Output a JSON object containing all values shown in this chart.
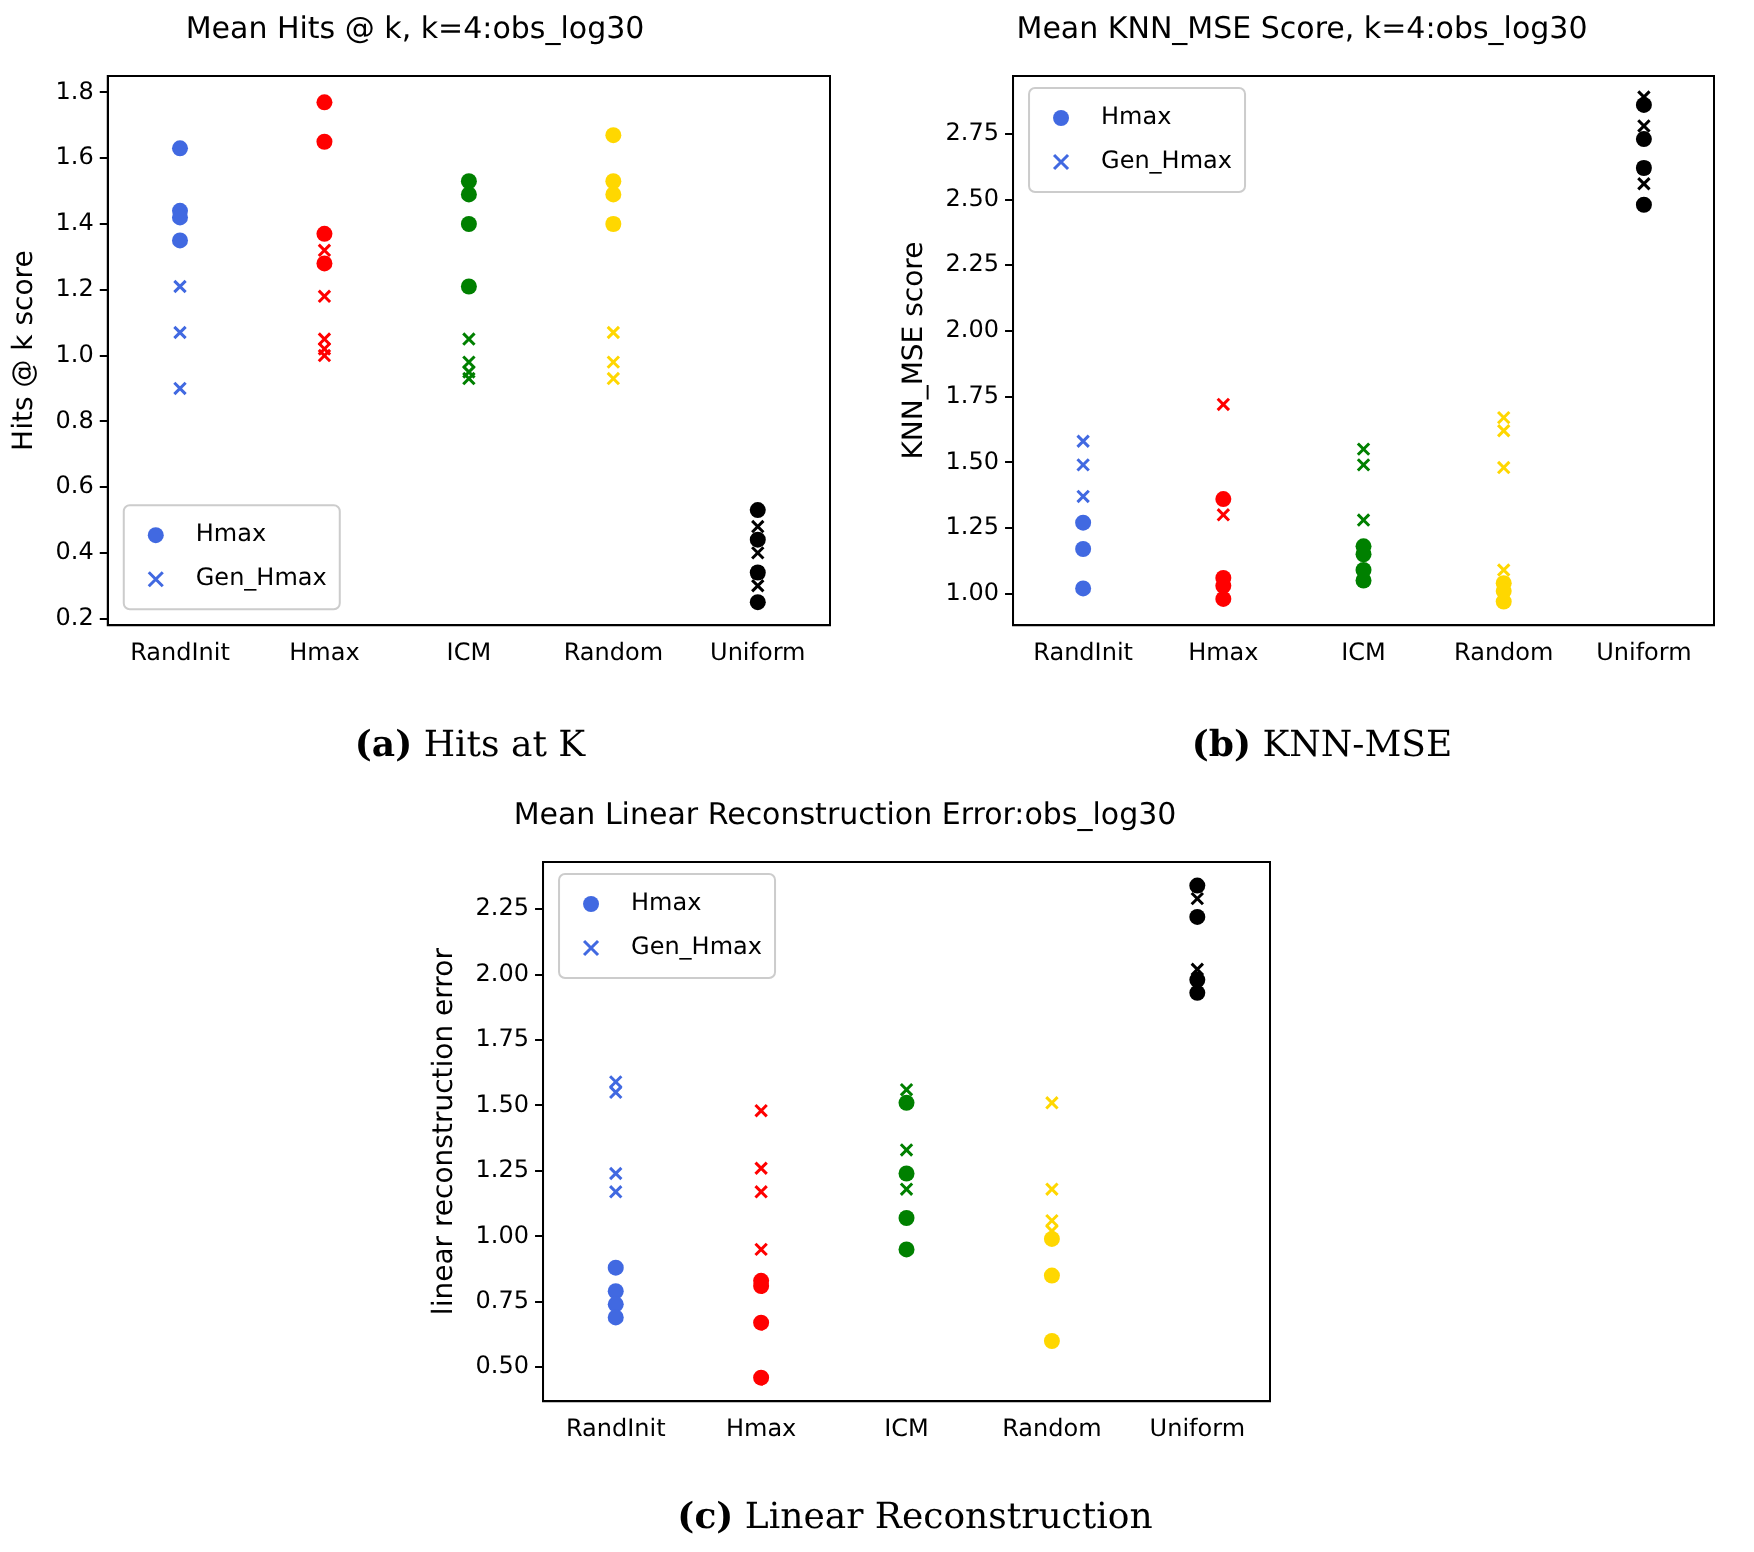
{
  "chart_data": [
    {
      "type": "scatter",
      "title": "Mean Hits @ k, k=4:obs_log30",
      "ylabel": "Hits @ k score",
      "categories": [
        "RandInit",
        "Hmax",
        "ICM",
        "Random",
        "Uniform"
      ],
      "ylim": [
        0.18,
        1.85
      ],
      "yticks": [
        0.2,
        0.4,
        0.6,
        0.8,
        {
          "value": 1,
          "label": "1.0"
        },
        1.2,
        1.4,
        1.6,
        1.8
      ],
      "legend": "bottom left",
      "annotations": [
        "(a) Hits at K"
      ],
      "series": [
        {
          "name": "Hmax",
          "marker": "circle",
          "x": [
            "RandInit",
            "RandInit",
            "RandInit",
            "RandInit",
            "Hmax",
            "Hmax",
            "Hmax",
            "Hmax",
            "ICM",
            "ICM",
            "ICM",
            "ICM",
            "Random",
            "Random",
            "Random",
            "Random",
            "Uniform",
            "Uniform",
            "Uniform",
            "Uniform"
          ],
          "values": [
            1.63,
            1.44,
            1.42,
            1.35,
            1.77,
            1.65,
            1.37,
            1.28,
            1.53,
            1.49,
            1.4,
            1.21,
            1.67,
            1.53,
            1.49,
            1.4,
            0.53,
            0.44,
            0.34,
            0.25
          ],
          "colors": [
            "#4169e1",
            "#4169e1",
            "#4169e1",
            "#4169e1",
            "#ff0000",
            "#ff0000",
            "#ff0000",
            "#ff0000",
            "#008000",
            "#008000",
            "#008000",
            "#008000",
            "#ffd700",
            "#ffd700",
            "#ffd700",
            "#ffd700",
            "#000000",
            "#000000",
            "#000000",
            "#000000"
          ]
        },
        {
          "name": "Gen_Hmax",
          "marker": "cross",
          "x": [
            "RandInit",
            "RandInit",
            "RandInit",
            "Hmax",
            "Hmax",
            "Hmax",
            "Hmax",
            "Hmax",
            "ICM",
            "ICM",
            "ICM",
            "ICM",
            "Random",
            "Random",
            "Random",
            "Random",
            "Uniform",
            "Uniform",
            "Uniform",
            "Uniform"
          ],
          "values": [
            1.21,
            1.07,
            0.9,
            1.32,
            1.18,
            1.05,
            1.02,
            1.0,
            1.05,
            0.98,
            0.95,
            0.93,
            1.4,
            1.07,
            0.98,
            0.93,
            0.48,
            0.4,
            0.34,
            0.3
          ],
          "colors": [
            "#4169e1",
            "#4169e1",
            "#4169e1",
            "#ff0000",
            "#ff0000",
            "#ff0000",
            "#ff0000",
            "#ff0000",
            "#008000",
            "#008000",
            "#008000",
            "#008000",
            "#ffd700",
            "#ffd700",
            "#ffd700",
            "#ffd700",
            "#000000",
            "#000000",
            "#000000",
            "#000000"
          ]
        }
      ]
    },
    {
      "type": "scatter",
      "title": "Mean KNN_MSE Score, k=4:obs_log30",
      "ylabel": "KNN_MSE score",
      "categories": [
        "RandInit",
        "Hmax",
        "ICM",
        "Random",
        "Uniform"
      ],
      "ylim": [
        0.88,
        2.97
      ],
      "yticks": [
        {
          "value": 1,
          "label": "1.00"
        },
        1.25,
        {
          "value": 1.5,
          "label": "1.50"
        },
        1.75,
        {
          "value": 2,
          "label": "2.00"
        },
        2.25,
        {
          "value": 2.5,
          "label": "2.50"
        },
        2.75
      ],
      "legend": "top left",
      "annotations": [
        "(b) KNN-MSE"
      ],
      "series": [
        {
          "name": "Hmax",
          "marker": "circle",
          "x": [
            "RandInit",
            "RandInit",
            "RandInit",
            "Hmax",
            "Hmax",
            "Hmax",
            "Hmax",
            "ICM",
            "ICM",
            "ICM",
            "ICM",
            "Random",
            "Random",
            "Random",
            "Uniform",
            "Uniform",
            "Uniform",
            "Uniform"
          ],
          "values": [
            1.27,
            1.17,
            1.02,
            1.36,
            1.06,
            1.03,
            0.98,
            1.18,
            1.15,
            1.09,
            1.05,
            1.04,
            1.01,
            0.97,
            2.86,
            2.73,
            2.62,
            2.48
          ],
          "colors": [
            "#4169e1",
            "#4169e1",
            "#4169e1",
            "#ff0000",
            "#ff0000",
            "#ff0000",
            "#ff0000",
            "#008000",
            "#008000",
            "#008000",
            "#008000",
            "#ffd700",
            "#ffd700",
            "#ffd700",
            "#000000",
            "#000000",
            "#000000",
            "#000000"
          ]
        },
        {
          "name": "Gen_Hmax",
          "marker": "cross",
          "x": [
            "RandInit",
            "RandInit",
            "RandInit",
            "Hmax",
            "Hmax",
            "ICM",
            "ICM",
            "ICM",
            "Random",
            "Random",
            "Random",
            "Random",
            "Uniform",
            "Uniform",
            "Uniform",
            "Uniform"
          ],
          "values": [
            1.58,
            1.49,
            1.37,
            1.72,
            1.3,
            1.55,
            1.49,
            1.28,
            1.67,
            1.62,
            1.48,
            1.09,
            2.89,
            2.78,
            2.62,
            2.56
          ],
          "colors": [
            "#4169e1",
            "#4169e1",
            "#4169e1",
            "#ff0000",
            "#ff0000",
            "#008000",
            "#008000",
            "#008000",
            "#ffd700",
            "#ffd700",
            "#ffd700",
            "#ffd700",
            "#000000",
            "#000000",
            "#000000",
            "#000000"
          ]
        }
      ]
    },
    {
      "type": "scatter",
      "title": "Mean Linear Reconstruction Error:obs_log30",
      "ylabel": "linear reconstruction error",
      "categories": [
        "RandInit",
        "Hmax",
        "ICM",
        "Random",
        "Uniform"
      ],
      "ylim": [
        0.37,
        2.43
      ],
      "yticks": [
        {
          "value": 0.5,
          "label": "0.50"
        },
        0.75,
        {
          "value": 1,
          "label": "1.00"
        },
        1.25,
        {
          "value": 1.5,
          "label": "1.50"
        },
        1.75,
        {
          "value": 2,
          "label": "2.00"
        },
        2.25
      ],
      "legend": "top left",
      "annotations": [
        "(c) Linear Reconstruction"
      ],
      "series": [
        {
          "name": "Hmax",
          "marker": "circle",
          "x": [
            "RandInit",
            "RandInit",
            "RandInit",
            "RandInit",
            "Hmax",
            "Hmax",
            "Hmax",
            "Hmax",
            "ICM",
            "ICM",
            "ICM",
            "ICM",
            "Random",
            "Random",
            "Random",
            "Uniform",
            "Uniform",
            "Uniform",
            "Uniform"
          ],
          "values": [
            0.88,
            0.79,
            0.74,
            0.69,
            0.83,
            0.81,
            0.67,
            0.46,
            1.51,
            1.24,
            1.07,
            0.95,
            0.99,
            0.85,
            0.6,
            2.34,
            2.22,
            1.98,
            1.93
          ],
          "colors": [
            "#4169e1",
            "#4169e1",
            "#4169e1",
            "#4169e1",
            "#ff0000",
            "#ff0000",
            "#ff0000",
            "#ff0000",
            "#008000",
            "#008000",
            "#008000",
            "#008000",
            "#ffd700",
            "#ffd700",
            "#ffd700",
            "#000000",
            "#000000",
            "#000000",
            "#000000"
          ]
        },
        {
          "name": "Gen_Hmax",
          "marker": "cross",
          "x": [
            "RandInit",
            "RandInit",
            "RandInit",
            "RandInit",
            "Hmax",
            "Hmax",
            "Hmax",
            "Hmax",
            "ICM",
            "ICM",
            "ICM",
            "Random",
            "Random",
            "Random",
            "Random",
            "Uniform",
            "Uniform"
          ],
          "values": [
            1.59,
            1.55,
            1.24,
            1.17,
            1.48,
            1.26,
            1.17,
            0.95,
            1.56,
            1.33,
            1.18,
            1.51,
            1.18,
            1.06,
            1.02,
            2.29,
            2.02
          ],
          "colors": [
            "#4169e1",
            "#4169e1",
            "#4169e1",
            "#4169e1",
            "#ff0000",
            "#ff0000",
            "#ff0000",
            "#ff0000",
            "#008000",
            "#008000",
            "#008000",
            "#ffd700",
            "#ffd700",
            "#ffd700",
            "#ffd700",
            "#000000",
            "#000000"
          ]
        }
      ]
    }
  ]
}
